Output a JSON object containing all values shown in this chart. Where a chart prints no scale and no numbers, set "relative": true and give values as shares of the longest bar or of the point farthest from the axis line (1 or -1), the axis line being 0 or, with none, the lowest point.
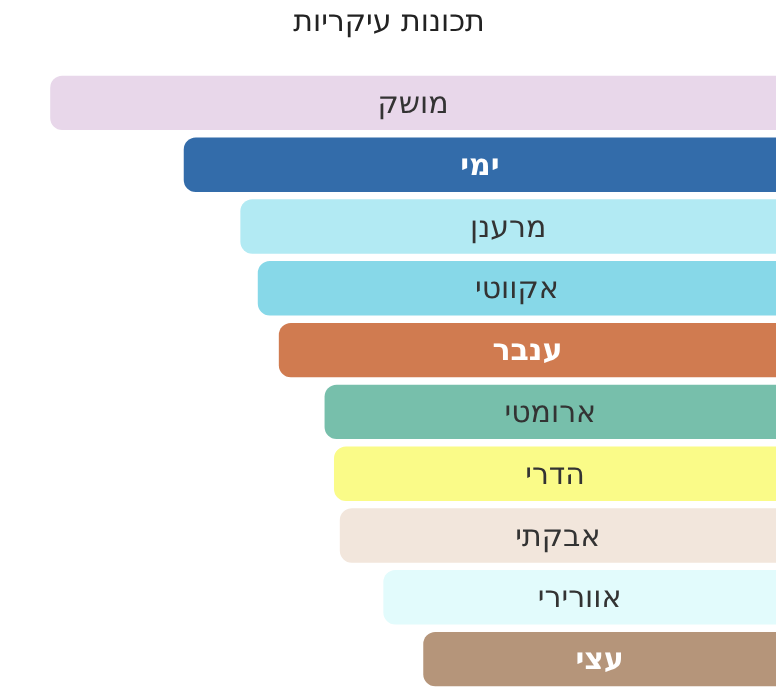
{
  "chart_data": {
    "type": "bar",
    "orientation": "horizontal",
    "relative": true,
    "title": "תכונות עיקריות",
    "categories": [
      "מושק",
      "ימי",
      "מרענן",
      "אקווטי",
      "ענבר",
      "ארומטי",
      "הדרי",
      "אבקתי",
      "אוורירי",
      "עצי"
    ],
    "values": [
      1,
      0.816,
      0.738,
      0.714,
      0.685,
      0.622,
      0.609,
      0.601,
      0.541,
      0.486
    ],
    "colors": [
      "#e8d7ea",
      "#336caa",
      "#b2eaf3",
      "#87d8e8",
      "#d07b50",
      "#77bfab",
      "#fafb88",
      "#f2e6dc",
      "#e2fbfc",
      "#b5957a"
    ],
    "legend": false
  }
}
